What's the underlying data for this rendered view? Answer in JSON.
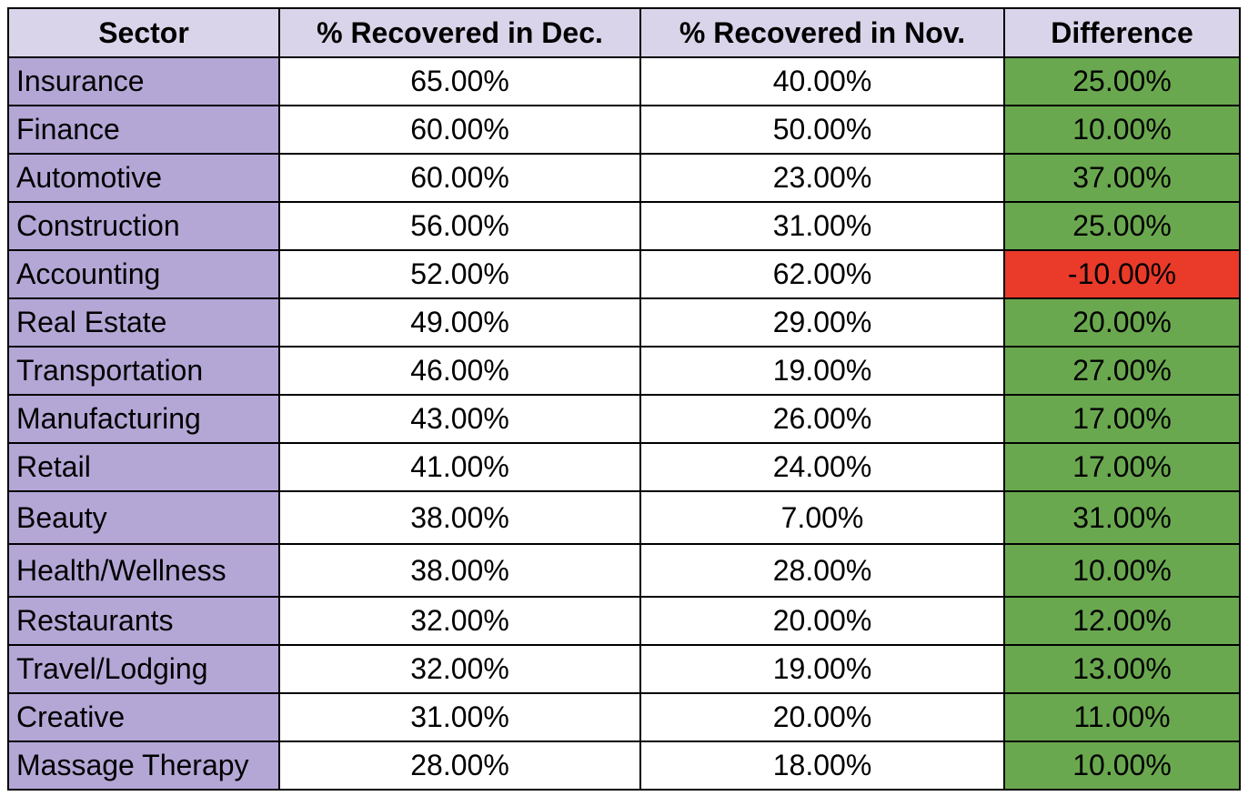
{
  "table": {
    "headers": [
      "Sector",
      "% Recovered in Dec.",
      "% Recovered in Nov.",
      "Difference"
    ],
    "rows": [
      {
        "sector": "Insurance",
        "dec": "65.00%",
        "nov": "40.00%",
        "diff": "25.00%",
        "status": "positive"
      },
      {
        "sector": "Finance",
        "dec": "60.00%",
        "nov": "50.00%",
        "diff": "10.00%",
        "status": "positive"
      },
      {
        "sector": "Automotive",
        "dec": "60.00%",
        "nov": "23.00%",
        "diff": "37.00%",
        "status": "positive"
      },
      {
        "sector": "Construction",
        "dec": "56.00%",
        "nov": "31.00%",
        "diff": "25.00%",
        "status": "positive"
      },
      {
        "sector": "Accounting",
        "dec": "52.00%",
        "nov": "62.00%",
        "diff": "-10.00%",
        "status": "negative"
      },
      {
        "sector": "Real Estate",
        "dec": "49.00%",
        "nov": "29.00%",
        "diff": "20.00%",
        "status": "positive"
      },
      {
        "sector": "Transportation",
        "dec": "46.00%",
        "nov": "19.00%",
        "diff": "27.00%",
        "status": "positive"
      },
      {
        "sector": "Manufacturing",
        "dec": "43.00%",
        "nov": "26.00%",
        "diff": "17.00%",
        "status": "positive"
      },
      {
        "sector": "Retail",
        "dec": "41.00%",
        "nov": "24.00%",
        "diff": "17.00%",
        "status": "positive"
      },
      {
        "sector": "Beauty",
        "dec": "38.00%",
        "nov": "7.00%",
        "diff": "31.00%",
        "status": "positive"
      },
      {
        "sector": "Health/Wellness",
        "dec": "38.00%",
        "nov": "28.00%",
        "diff": "10.00%",
        "status": "positive"
      },
      {
        "sector": "Restaurants",
        "dec": "32.00%",
        "nov": "20.00%",
        "diff": "12.00%",
        "status": "positive"
      },
      {
        "sector": "Travel/Lodging",
        "dec": "32.00%",
        "nov": "19.00%",
        "diff": "13.00%",
        "status": "positive"
      },
      {
        "sector": "Creative",
        "dec": "31.00%",
        "nov": "20.00%",
        "diff": "11.00%",
        "status": "positive"
      },
      {
        "sector": "Massage Therapy",
        "dec": "28.00%",
        "nov": "18.00%",
        "diff": "10.00%",
        "status": "positive"
      }
    ]
  },
  "colors": {
    "header_bg": "#d9d4e9",
    "sector_bg": "#b4a7d6",
    "positive_bg": "#6aa84f",
    "negative_bg": "#ea3a2a"
  }
}
